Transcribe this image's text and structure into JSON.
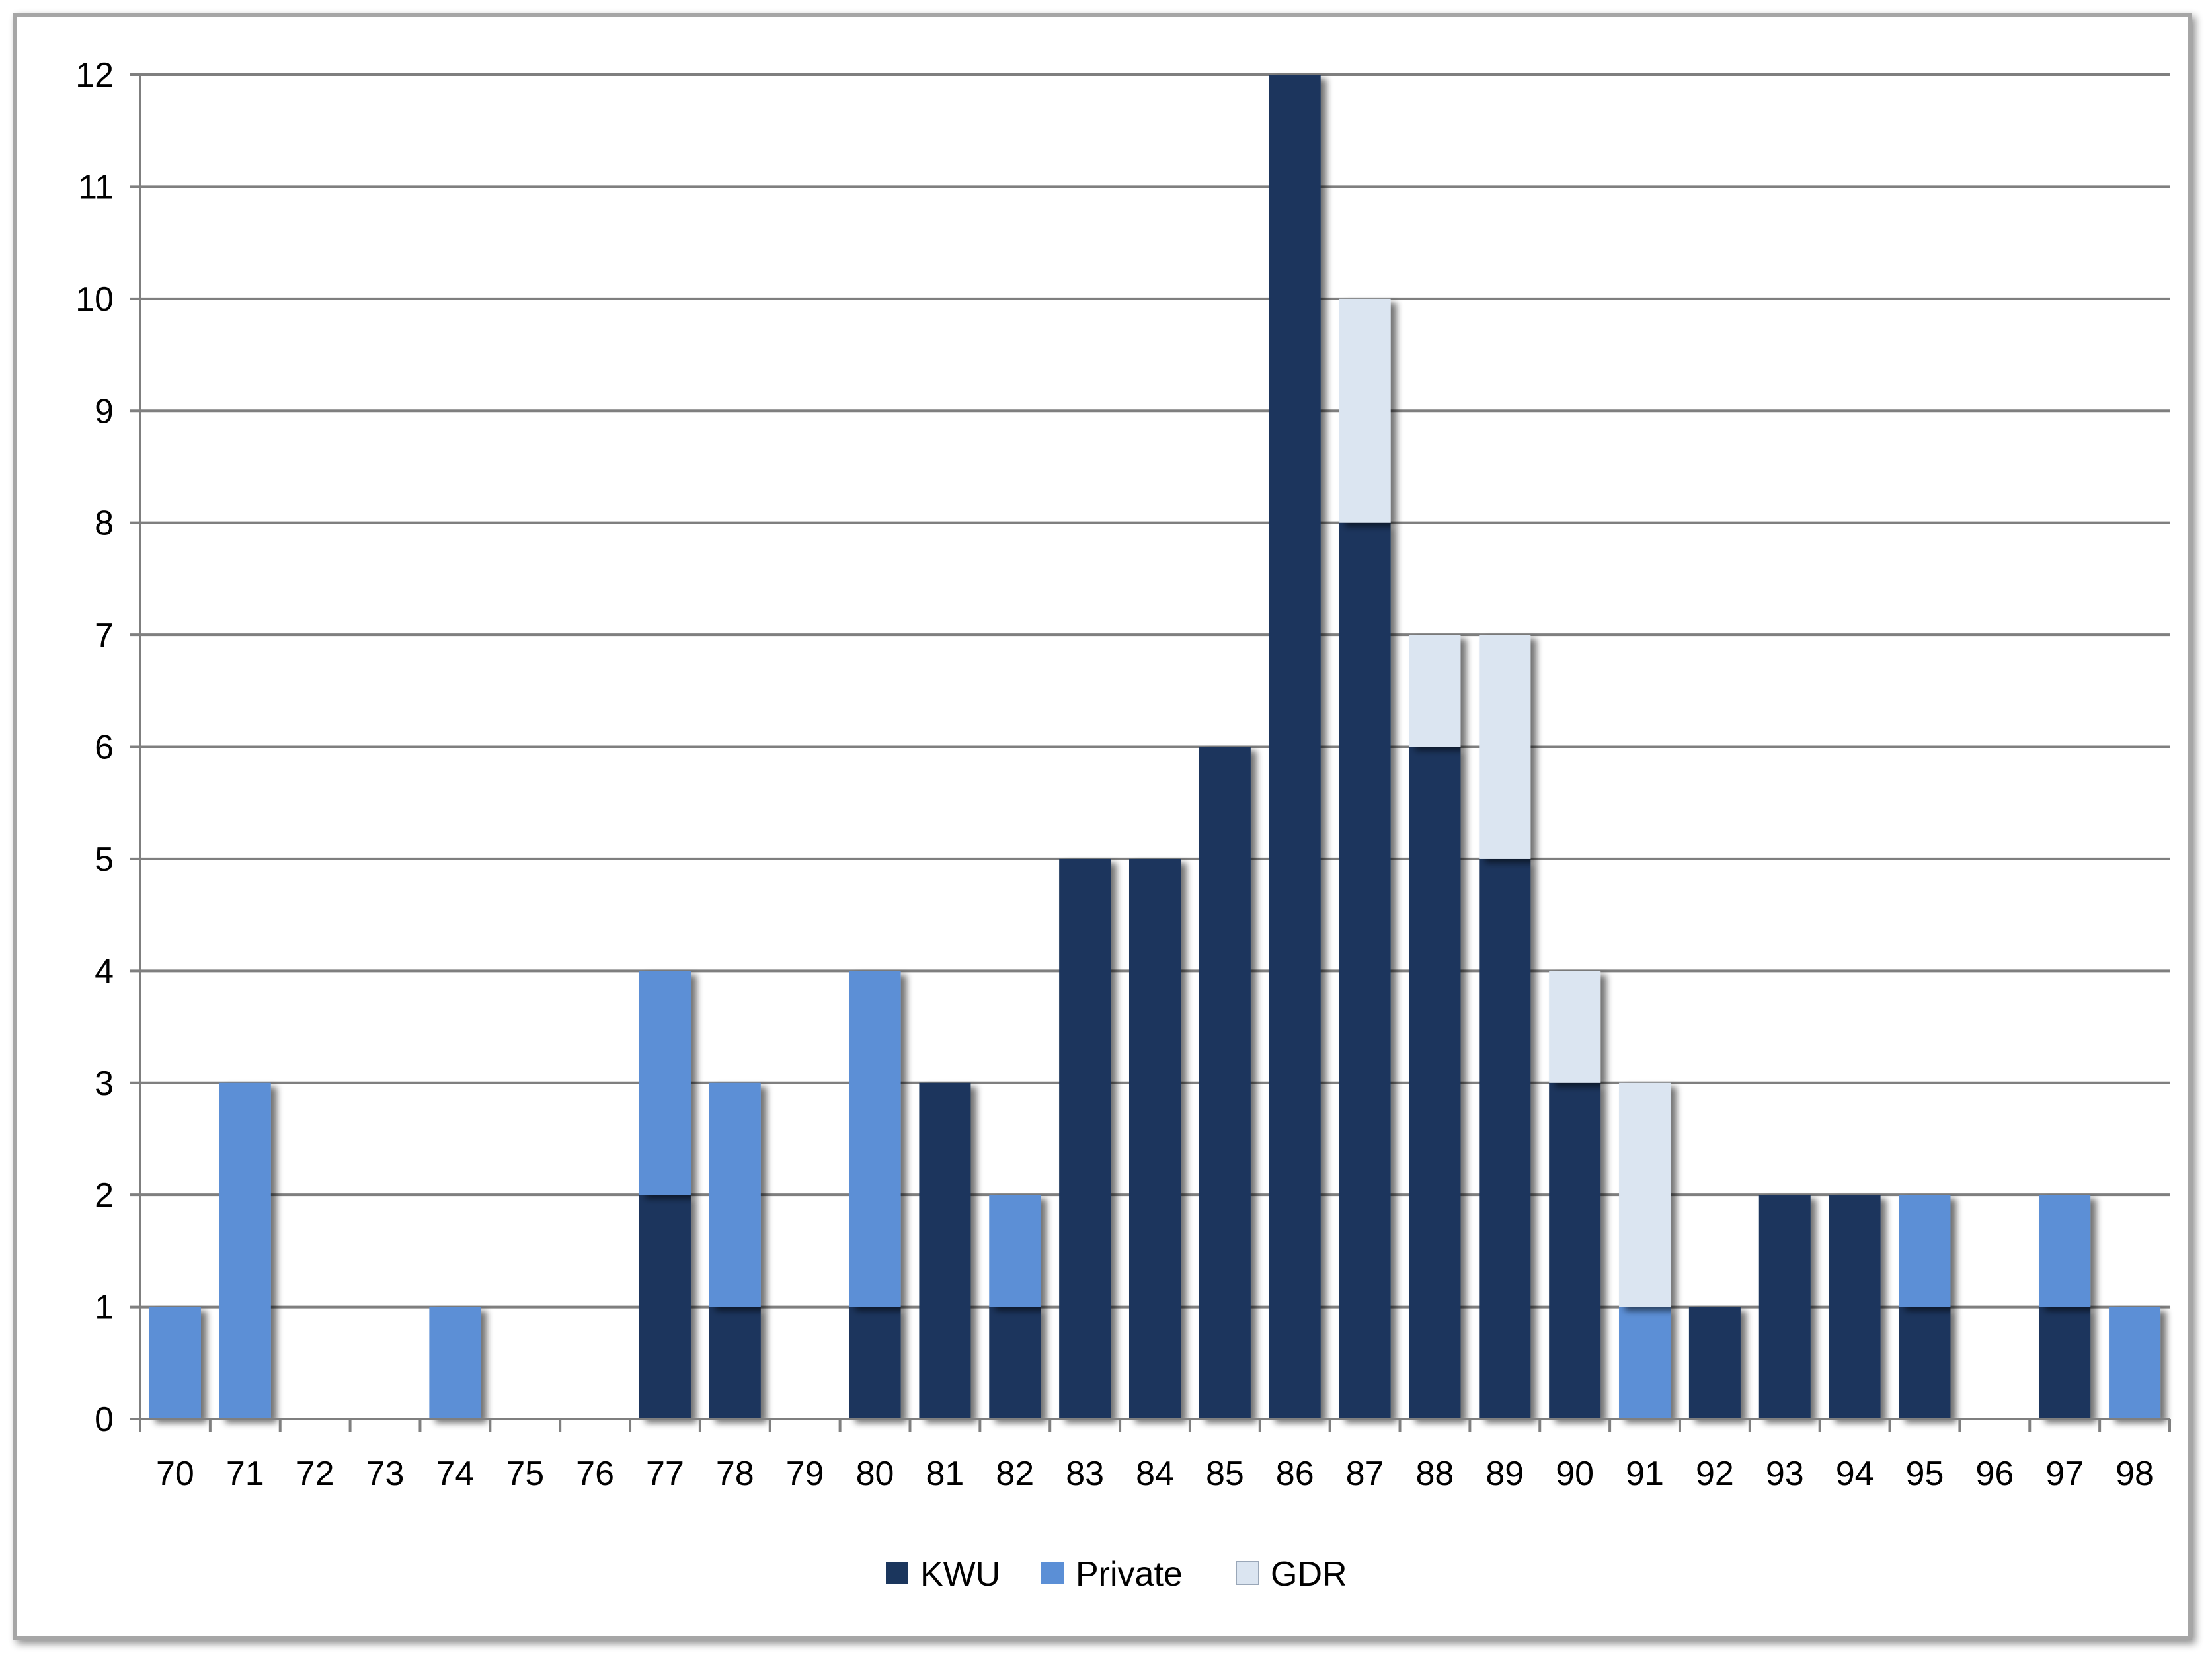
{
  "chart_data": {
    "type": "bar",
    "stacked": true,
    "categories": [
      "70",
      "71",
      "72",
      "73",
      "74",
      "75",
      "76",
      "77",
      "78",
      "79",
      "80",
      "81",
      "82",
      "83",
      "84",
      "85",
      "86",
      "87",
      "88",
      "89",
      "90",
      "91",
      "92",
      "93",
      "94",
      "95",
      "96",
      "97",
      "98"
    ],
    "series": [
      {
        "name": "KWU",
        "color": "#1b365d",
        "values": [
          0,
          0,
          0,
          0,
          0,
          0,
          0,
          2,
          1,
          0,
          1,
          3,
          1,
          5,
          5,
          6,
          12,
          8,
          6,
          5,
          3,
          0,
          1,
          2,
          2,
          1,
          0,
          1,
          0
        ]
      },
      {
        "name": "Private",
        "color": "#5b8fd6",
        "values": [
          1,
          3,
          0,
          0,
          1,
          0,
          0,
          2,
          2,
          0,
          3,
          0,
          1,
          0,
          0,
          0,
          0,
          0,
          0,
          0,
          0,
          1,
          0,
          0,
          0,
          1,
          0,
          1,
          1
        ]
      },
      {
        "name": "GDR",
        "color": "#dbe5f1",
        "values": [
          0,
          0,
          0,
          0,
          0,
          0,
          0,
          0,
          0,
          0,
          0,
          0,
          0,
          0,
          0,
          0,
          0,
          2,
          1,
          2,
          1,
          2,
          0,
          0,
          0,
          0,
          0,
          0,
          0
        ]
      }
    ],
    "yticks": [
      "0",
      "1",
      "2",
      "3",
      "4",
      "5",
      "6",
      "7",
      "8",
      "9",
      "10",
      "11",
      "12"
    ],
    "ylim": [
      0,
      12
    ],
    "grid": true,
    "legend": "bottom",
    "title": "",
    "xlabel": "",
    "ylabel": ""
  }
}
